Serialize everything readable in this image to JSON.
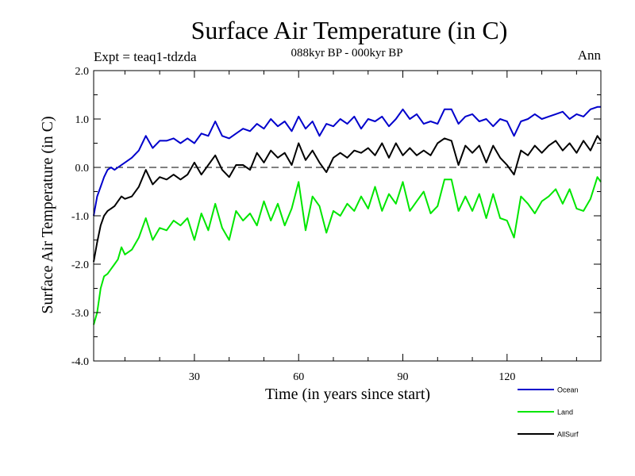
{
  "chart_data": {
    "type": "line",
    "title": "Surface Air Temperature (in C)",
    "subtitle": "088kyr BP - 000kyr BP",
    "experiment_label": "Expt = teaq1-tdzda",
    "season_label": "Ann",
    "xlabel": "Time (in years since start)",
    "ylabel": "Surface Air Temperature (in C)",
    "xlim": [
      1,
      147
    ],
    "ylim": [
      -4.0,
      2.0
    ],
    "xticks": [
      30,
      60,
      90,
      120
    ],
    "xtick_labels": [
      "30",
      "60",
      "90",
      "120"
    ],
    "yticks": [
      2.0,
      1.0,
      0.0,
      -1.0,
      -2.0,
      -3.0,
      -4.0
    ],
    "ytick_labels": [
      "2.0",
      "1.0",
      "0.0",
      "-1.0",
      "-2.0",
      "-3.0",
      "-4.0"
    ],
    "zero_line": true,
    "legend_position": "bottom-right",
    "series": [
      {
        "name": "Ocean",
        "color": "#0000cc",
        "x": [
          1,
          2,
          3,
          4,
          5,
          6,
          7,
          8,
          10,
          12,
          14,
          16,
          18,
          20,
          22,
          24,
          26,
          28,
          30,
          32,
          34,
          36,
          38,
          40,
          42,
          44,
          46,
          48,
          50,
          52,
          54,
          56,
          58,
          60,
          62,
          64,
          66,
          68,
          70,
          72,
          74,
          76,
          78,
          80,
          82,
          84,
          86,
          88,
          90,
          92,
          94,
          96,
          98,
          100,
          102,
          104,
          106,
          108,
          110,
          112,
          114,
          116,
          118,
          120,
          122,
          124,
          126,
          128,
          130,
          132,
          134,
          136,
          138,
          140,
          142,
          144,
          146,
          147
        ],
        "values": [
          -1.0,
          -0.6,
          -0.4,
          -0.2,
          -0.05,
          0.0,
          -0.05,
          0.0,
          0.1,
          0.2,
          0.35,
          0.65,
          0.4,
          0.55,
          0.55,
          0.6,
          0.5,
          0.6,
          0.5,
          0.7,
          0.65,
          0.95,
          0.65,
          0.6,
          0.7,
          0.8,
          0.75,
          0.9,
          0.8,
          1.0,
          0.85,
          0.95,
          0.75,
          1.05,
          0.8,
          0.95,
          0.65,
          0.9,
          0.85,
          1.0,
          0.9,
          1.05,
          0.8,
          1.0,
          0.95,
          1.05,
          0.85,
          1.0,
          1.2,
          1.0,
          1.1,
          0.9,
          0.95,
          0.9,
          1.2,
          1.2,
          0.9,
          1.05,
          1.1,
          0.95,
          1.0,
          0.85,
          1.0,
          0.95,
          0.65,
          0.95,
          1.0,
          1.1,
          1.0,
          1.05,
          1.1,
          1.15,
          1.0,
          1.1,
          1.05,
          1.2,
          1.25,
          1.25
        ]
      },
      {
        "name": "Land",
        "color": "#00e600",
        "x": [
          1,
          2,
          3,
          4,
          5,
          6,
          7,
          8,
          9,
          10,
          12,
          14,
          16,
          18,
          20,
          22,
          24,
          26,
          28,
          30,
          32,
          34,
          36,
          38,
          40,
          42,
          44,
          46,
          48,
          50,
          52,
          54,
          56,
          58,
          60,
          62,
          64,
          66,
          68,
          70,
          72,
          74,
          76,
          78,
          80,
          82,
          84,
          86,
          88,
          90,
          92,
          94,
          96,
          98,
          100,
          102,
          104,
          106,
          108,
          110,
          112,
          114,
          116,
          118,
          120,
          122,
          124,
          126,
          128,
          130,
          132,
          134,
          136,
          138,
          140,
          142,
          144,
          146,
          147
        ],
        "values": [
          -3.25,
          -3.0,
          -2.5,
          -2.25,
          -2.2,
          -2.1,
          -2.0,
          -1.9,
          -1.65,
          -1.8,
          -1.7,
          -1.45,
          -1.05,
          -1.5,
          -1.25,
          -1.3,
          -1.1,
          -1.2,
          -1.05,
          -1.5,
          -0.95,
          -1.3,
          -0.75,
          -1.25,
          -1.5,
          -0.9,
          -1.1,
          -0.95,
          -1.2,
          -0.7,
          -1.1,
          -0.75,
          -1.2,
          -0.85,
          -0.3,
          -1.3,
          -0.6,
          -0.8,
          -1.35,
          -0.9,
          -1.0,
          -0.75,
          -0.9,
          -0.6,
          -0.85,
          -0.4,
          -0.9,
          -0.55,
          -0.75,
          -0.3,
          -0.9,
          -0.7,
          -0.5,
          -0.95,
          -0.8,
          -0.25,
          -0.25,
          -0.9,
          -0.6,
          -0.9,
          -0.55,
          -1.05,
          -0.55,
          -1.05,
          -1.1,
          -1.45,
          -0.6,
          -0.75,
          -0.95,
          -0.7,
          -0.6,
          -0.45,
          -0.75,
          -0.45,
          -0.85,
          -0.9,
          -0.65,
          -0.2,
          -0.3
        ]
      },
      {
        "name": "AllSurf",
        "color": "#000000",
        "x": [
          1,
          2,
          3,
          4,
          5,
          6,
          7,
          8,
          9,
          10,
          12,
          14,
          16,
          18,
          20,
          22,
          24,
          26,
          28,
          30,
          32,
          34,
          36,
          38,
          40,
          42,
          44,
          46,
          48,
          50,
          52,
          54,
          56,
          58,
          60,
          62,
          64,
          66,
          68,
          70,
          72,
          74,
          76,
          78,
          80,
          82,
          84,
          86,
          88,
          90,
          92,
          94,
          96,
          98,
          100,
          102,
          104,
          106,
          108,
          110,
          112,
          114,
          116,
          118,
          120,
          122,
          124,
          126,
          128,
          130,
          132,
          134,
          136,
          138,
          140,
          142,
          144,
          146,
          147
        ],
        "values": [
          -1.95,
          -1.55,
          -1.2,
          -1.0,
          -0.9,
          -0.85,
          -0.8,
          -0.7,
          -0.6,
          -0.65,
          -0.6,
          -0.4,
          -0.05,
          -0.35,
          -0.2,
          -0.25,
          -0.15,
          -0.25,
          -0.15,
          0.1,
          -0.15,
          0.05,
          0.25,
          -0.05,
          -0.2,
          0.05,
          0.05,
          -0.05,
          0.3,
          0.1,
          0.35,
          0.2,
          0.3,
          0.05,
          0.5,
          0.15,
          0.35,
          0.1,
          -0.1,
          0.2,
          0.3,
          0.2,
          0.35,
          0.3,
          0.4,
          0.25,
          0.5,
          0.2,
          0.5,
          0.25,
          0.4,
          0.25,
          0.35,
          0.25,
          0.5,
          0.6,
          0.55,
          0.05,
          0.45,
          0.3,
          0.45,
          0.1,
          0.45,
          0.2,
          0.05,
          -0.15,
          0.35,
          0.25,
          0.45,
          0.3,
          0.45,
          0.55,
          0.35,
          0.5,
          0.3,
          0.55,
          0.35,
          0.65,
          0.55
        ]
      }
    ]
  }
}
